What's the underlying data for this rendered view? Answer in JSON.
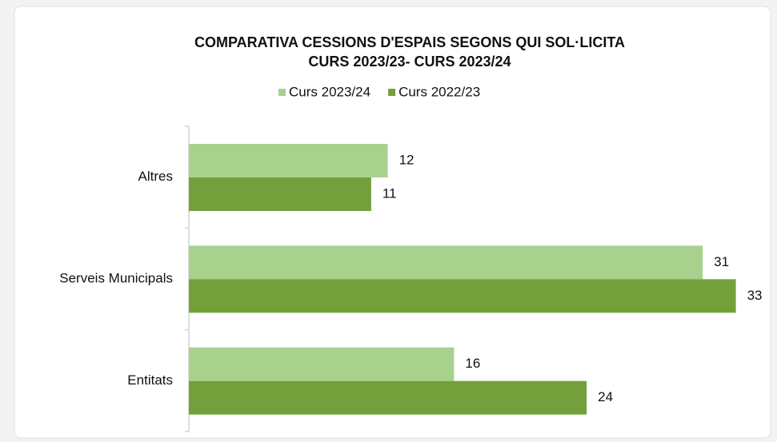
{
  "chart_data": {
    "type": "barh",
    "title": "COMPARATIVA CESSIONS D'ESPAIS SEGONS QUI SOL·LICITA",
    "subtitle": "CURS 2023/23- CURS 2023/24",
    "categories": [
      "Altres",
      "Serveis Municipals",
      "Entitats"
    ],
    "series": [
      {
        "name": "Curs 2023/24",
        "color": "#a9d18e",
        "values": [
          12,
          31,
          16
        ]
      },
      {
        "name": "Curs 2022/23",
        "color": "#74a03c",
        "values": [
          11,
          33,
          24
        ]
      }
    ],
    "xlim": [
      0,
      35
    ],
    "legend": "top"
  }
}
